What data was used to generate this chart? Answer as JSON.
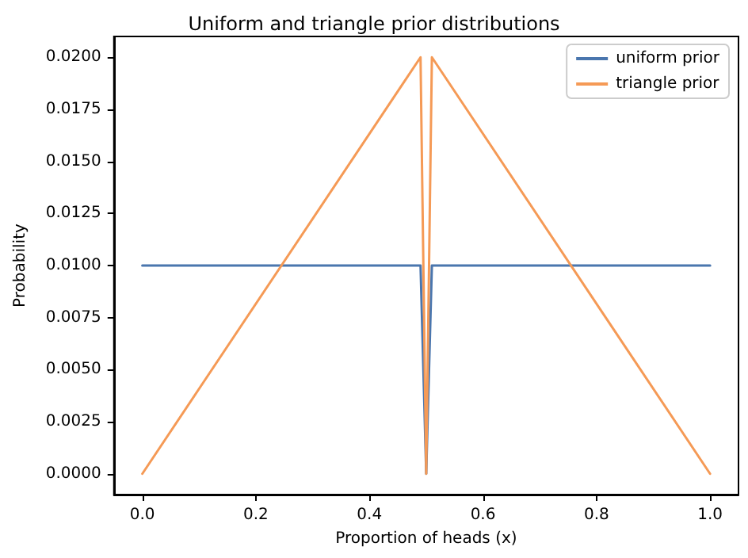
{
  "chart_data": {
    "type": "line",
    "title": "Uniform and triangle prior distributions",
    "xlabel": "Proportion of heads (x)",
    "ylabel": "Probability",
    "series": [
      {
        "name": "uniform prior",
        "color": "#4a76ae",
        "x": [
          0,
          0.49,
          0.5,
          0.51,
          1
        ],
        "values": [
          0.01,
          0.01,
          0,
          0.01,
          0.01
        ]
      },
      {
        "name": "triangle prior",
        "color": "#f59a56",
        "x": [
          0,
          0.49,
          0.5,
          0.51,
          1
        ],
        "values": [
          0,
          0.02,
          0,
          0.02,
          0
        ]
      }
    ],
    "xlim": [
      -0.05,
      1.05
    ],
    "xticks": [
      {
        "value": 0,
        "label": "0.0"
      },
      {
        "value": 0.2,
        "label": "0.2"
      },
      {
        "value": 0.4,
        "label": "0.4"
      },
      {
        "value": 0.6,
        "label": "0.6"
      },
      {
        "value": 0.8,
        "label": "0.8"
      },
      {
        "value": 1,
        "label": "1.0"
      }
    ],
    "ylim": [
      -0.001,
      0.021
    ],
    "yticks": [
      {
        "value": 0,
        "label": "0.0000"
      },
      {
        "value": 0.0025,
        "label": "0.0025"
      },
      {
        "value": 0.005,
        "label": "0.0050"
      },
      {
        "value": 0.0075,
        "label": "0.0075"
      },
      {
        "value": 0.01,
        "label": "0.0100"
      },
      {
        "value": 0.0125,
        "label": "0.0125"
      },
      {
        "value": 0.015,
        "label": "0.0150"
      },
      {
        "value": 0.0175,
        "label": "0.0175"
      },
      {
        "value": 0.02,
        "label": "0.0200"
      }
    ],
    "grid": false,
    "legend": "top right",
    "marker": "none",
    "line_style": "solid"
  }
}
